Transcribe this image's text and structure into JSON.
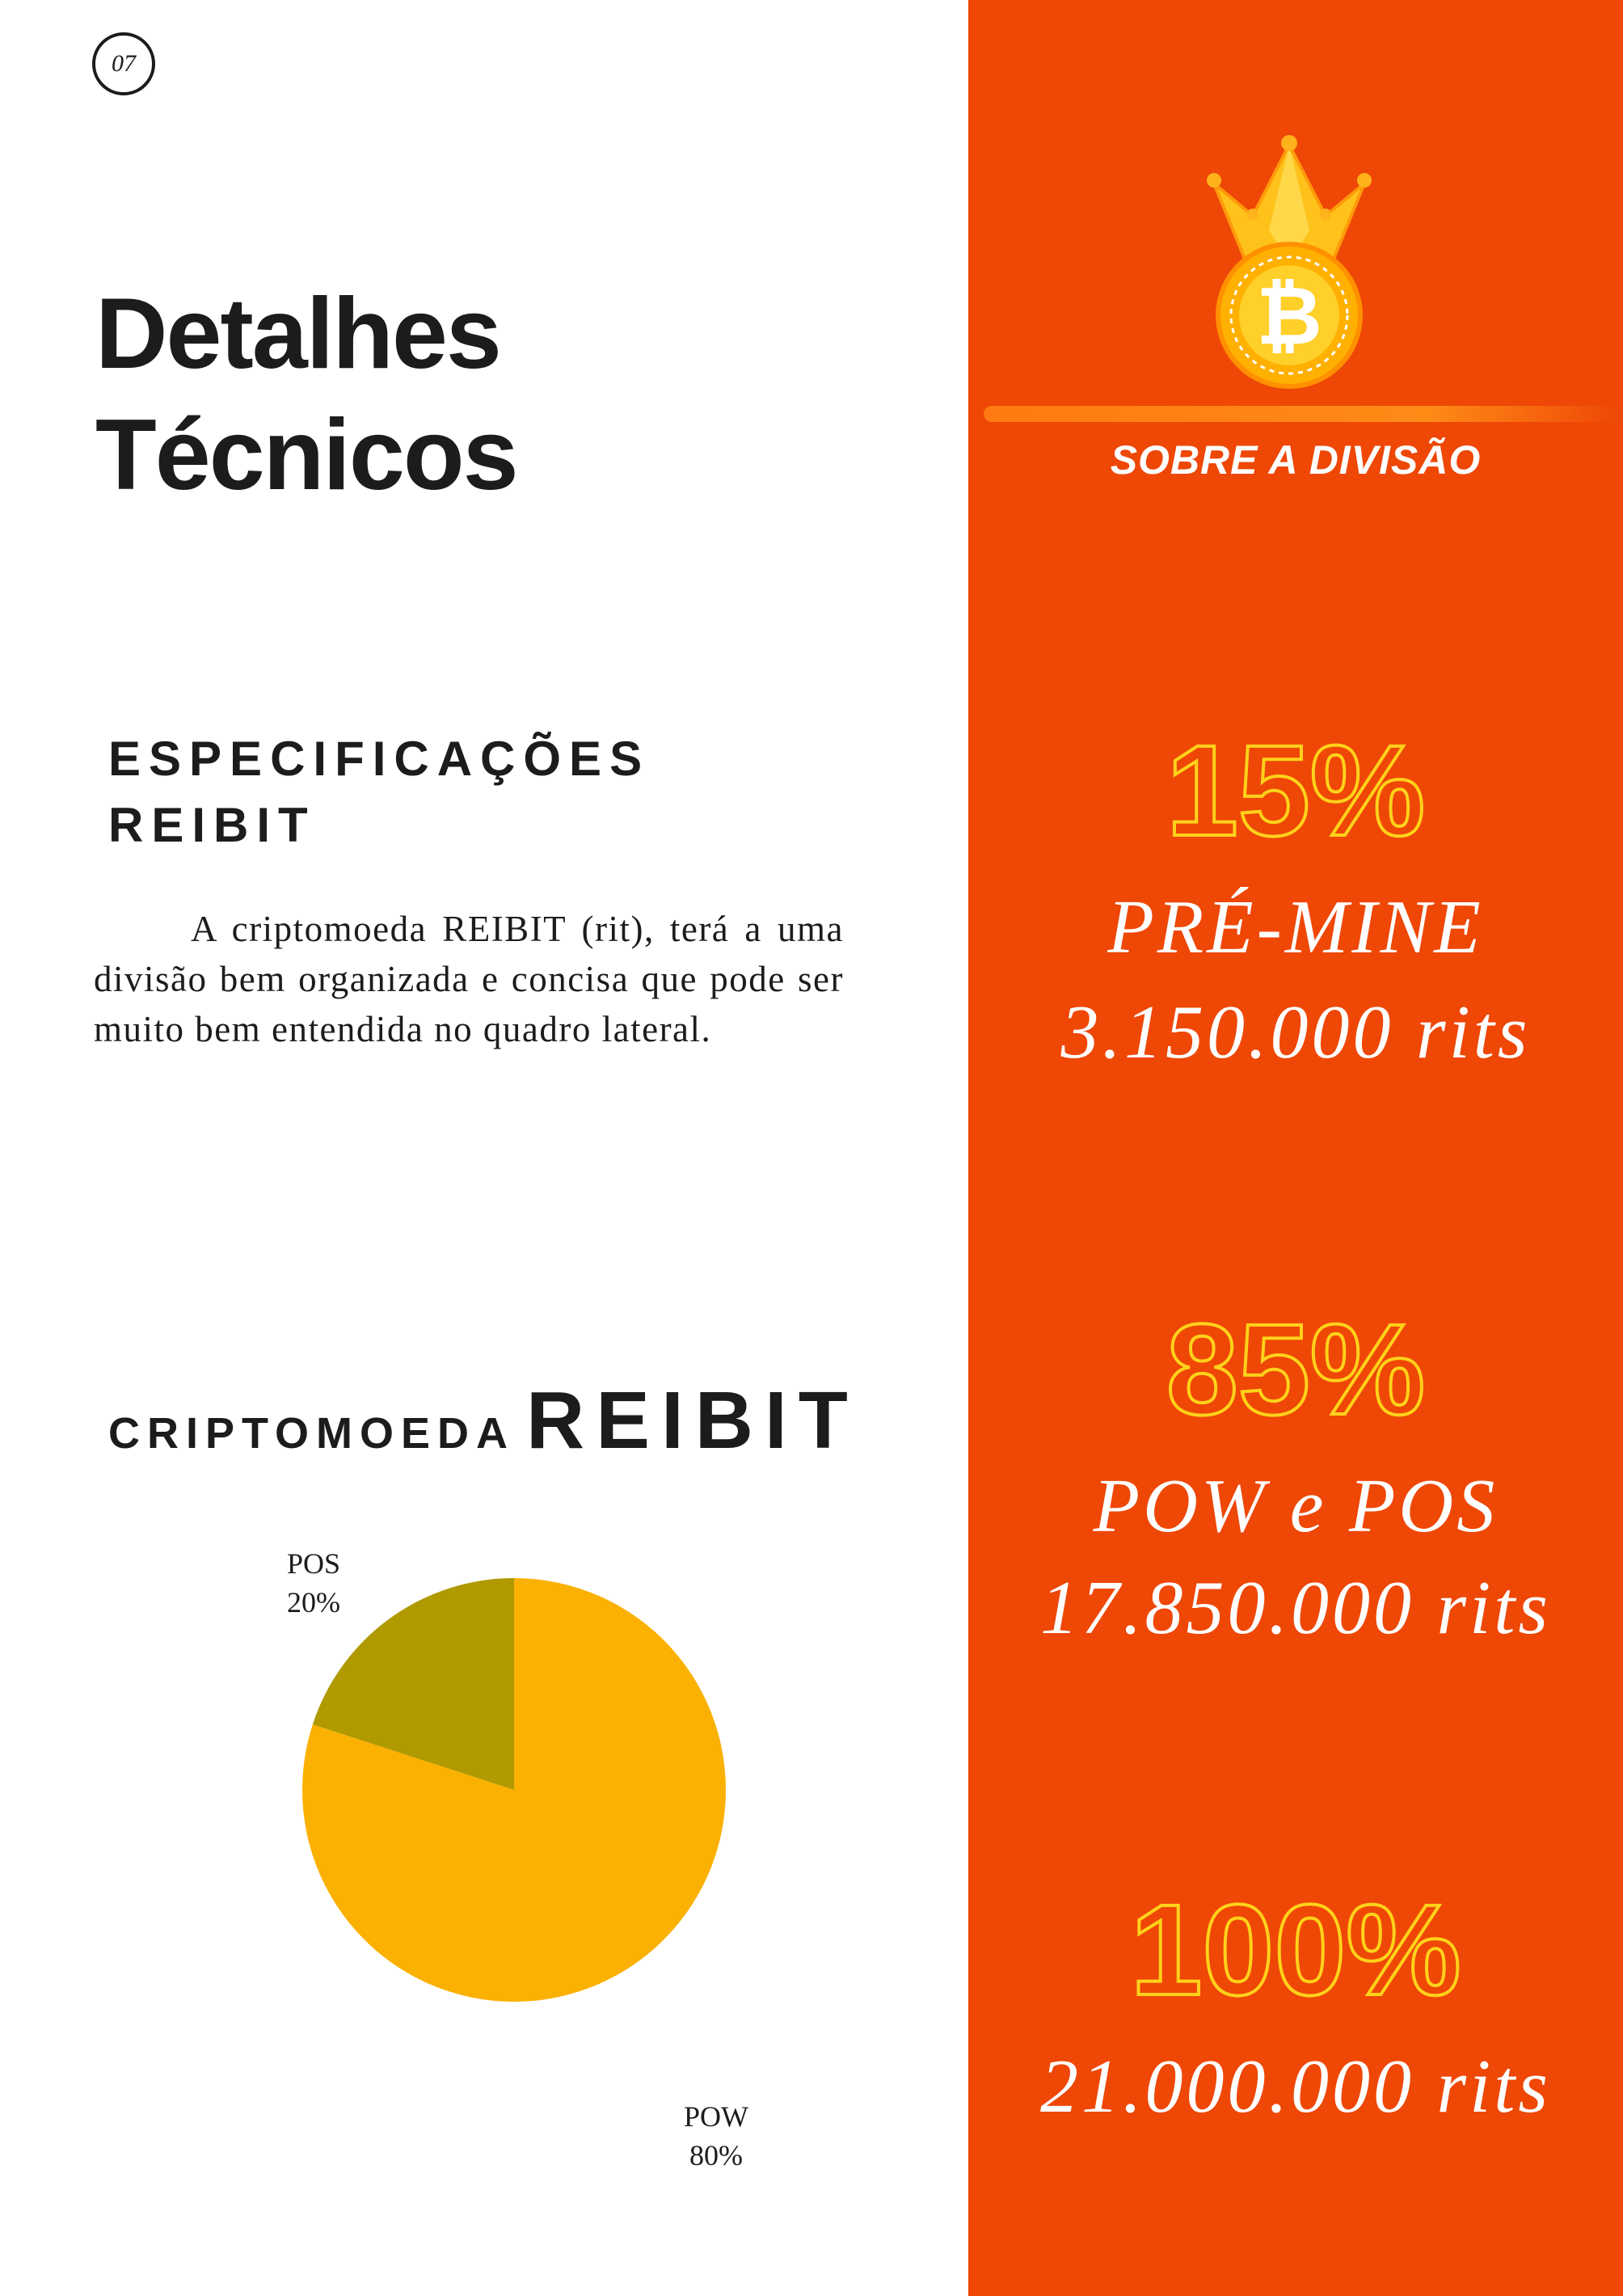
{
  "page_number": "07",
  "title": {
    "line1": "Detalhes",
    "line2": "Técnicos"
  },
  "specs": {
    "heading_line1": "ESPECIFICAÇÕES",
    "heading_line2": "REIBIT",
    "body": "A criptomoeda REIBIT (rit), terá a uma divisão bem organizada e concisa que pode ser muito bem entendida no quadro lateral."
  },
  "chart_heading": {
    "small": "CRIPTOMOEDA",
    "big": "REIBIT"
  },
  "chart_data": {
    "type": "pie",
    "categories": [
      "POW",
      "POS"
    ],
    "values": [
      80,
      20
    ],
    "labels": [
      {
        "name": "POW",
        "pct": "80%"
      },
      {
        "name": "POS",
        "pct": "20%"
      }
    ],
    "colors": [
      "#fbb101",
      "#b09a00"
    ]
  },
  "sidebar": {
    "section_title": "SOBRE A DIVISÃO",
    "icon": "bitcoin-crown-icon",
    "stats": [
      {
        "percent": "15%",
        "label": "PRÉ-MINE",
        "amount": "3.150.000 rits"
      },
      {
        "percent": "85%",
        "label": "POW e POS",
        "amount": "17.850.000 rits"
      },
      {
        "percent": "100%",
        "amount": "21.000.000 rits"
      }
    ]
  },
  "colors": {
    "panel": "#ee4706",
    "stat_outline": "#ffd21a",
    "text_dark": "#1c1c1c",
    "white": "#ffffff"
  }
}
